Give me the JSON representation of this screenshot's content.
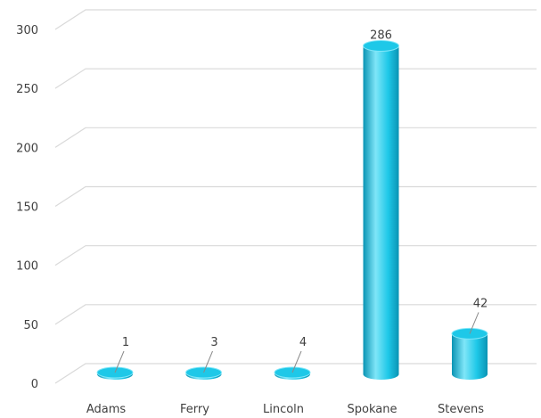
{
  "chart_data": {
    "type": "bar",
    "title": "",
    "xlabel": "",
    "ylabel": "",
    "categories": [
      "Adams",
      "Ferry",
      "Lincoln",
      "Spokane",
      "Stevens"
    ],
    "values": [
      1,
      3,
      4,
      286,
      42
    ],
    "data_labels": [
      "1",
      "3",
      "4",
      "286",
      "42"
    ],
    "ylim": [
      0,
      300
    ],
    "yticks": [
      0,
      50,
      100,
      150,
      200,
      250,
      300
    ],
    "grid": true,
    "legend": "none",
    "bar_style": "3d cylinder",
    "colors": {
      "bar": "#1ec8e8",
      "bar_dark": "#0a94b4",
      "bar_light": "#7fe6f8",
      "grid": "#d9d9d9",
      "text": "#404040"
    }
  }
}
